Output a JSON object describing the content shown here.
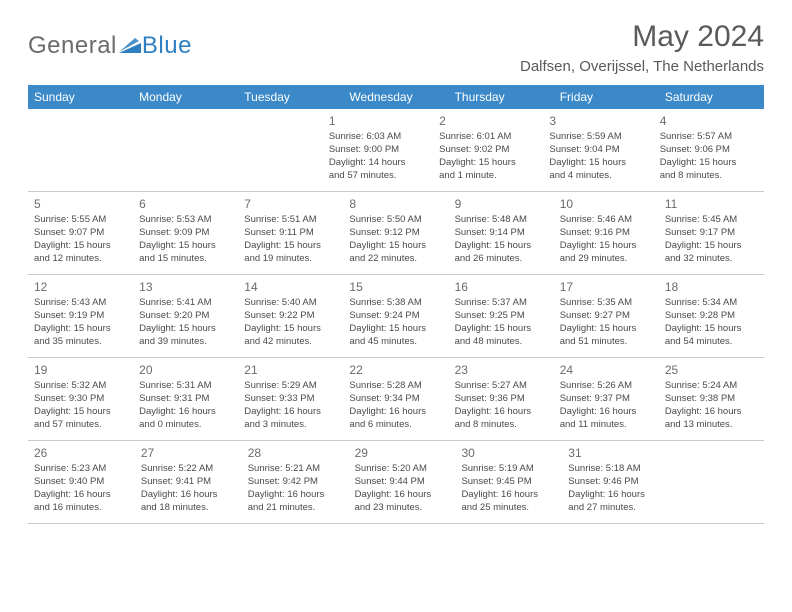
{
  "brand": {
    "word1": "General",
    "word2": "Blue",
    "word1_color": "#6b6b6b",
    "word2_color": "#2f7fc1",
    "mark_color": "#2f7fc1"
  },
  "title": "May 2024",
  "location": "Dalfsen, Overijssel, The Netherlands",
  "title_color": "#5a5a5a",
  "header_bg": "#3b89c9",
  "header_text_color": "#ffffff",
  "border_color": "#c9c9c9",
  "cell_text_color": "#4a4a4a",
  "daynum_color": "#6b6b6b",
  "weekdays": [
    "Sunday",
    "Monday",
    "Tuesday",
    "Wednesday",
    "Thursday",
    "Friday",
    "Saturday"
  ],
  "weeks": [
    [
      null,
      null,
      null,
      {
        "n": "1",
        "sr": "Sunrise: 6:03 AM",
        "ss": "Sunset: 9:00 PM",
        "d1": "Daylight: 14 hours",
        "d2": "and 57 minutes."
      },
      {
        "n": "2",
        "sr": "Sunrise: 6:01 AM",
        "ss": "Sunset: 9:02 PM",
        "d1": "Daylight: 15 hours",
        "d2": "and 1 minute."
      },
      {
        "n": "3",
        "sr": "Sunrise: 5:59 AM",
        "ss": "Sunset: 9:04 PM",
        "d1": "Daylight: 15 hours",
        "d2": "and 4 minutes."
      },
      {
        "n": "4",
        "sr": "Sunrise: 5:57 AM",
        "ss": "Sunset: 9:06 PM",
        "d1": "Daylight: 15 hours",
        "d2": "and 8 minutes."
      }
    ],
    [
      {
        "n": "5",
        "sr": "Sunrise: 5:55 AM",
        "ss": "Sunset: 9:07 PM",
        "d1": "Daylight: 15 hours",
        "d2": "and 12 minutes."
      },
      {
        "n": "6",
        "sr": "Sunrise: 5:53 AM",
        "ss": "Sunset: 9:09 PM",
        "d1": "Daylight: 15 hours",
        "d2": "and 15 minutes."
      },
      {
        "n": "7",
        "sr": "Sunrise: 5:51 AM",
        "ss": "Sunset: 9:11 PM",
        "d1": "Daylight: 15 hours",
        "d2": "and 19 minutes."
      },
      {
        "n": "8",
        "sr": "Sunrise: 5:50 AM",
        "ss": "Sunset: 9:12 PM",
        "d1": "Daylight: 15 hours",
        "d2": "and 22 minutes."
      },
      {
        "n": "9",
        "sr": "Sunrise: 5:48 AM",
        "ss": "Sunset: 9:14 PM",
        "d1": "Daylight: 15 hours",
        "d2": "and 26 minutes."
      },
      {
        "n": "10",
        "sr": "Sunrise: 5:46 AM",
        "ss": "Sunset: 9:16 PM",
        "d1": "Daylight: 15 hours",
        "d2": "and 29 minutes."
      },
      {
        "n": "11",
        "sr": "Sunrise: 5:45 AM",
        "ss": "Sunset: 9:17 PM",
        "d1": "Daylight: 15 hours",
        "d2": "and 32 minutes."
      }
    ],
    [
      {
        "n": "12",
        "sr": "Sunrise: 5:43 AM",
        "ss": "Sunset: 9:19 PM",
        "d1": "Daylight: 15 hours",
        "d2": "and 35 minutes."
      },
      {
        "n": "13",
        "sr": "Sunrise: 5:41 AM",
        "ss": "Sunset: 9:20 PM",
        "d1": "Daylight: 15 hours",
        "d2": "and 39 minutes."
      },
      {
        "n": "14",
        "sr": "Sunrise: 5:40 AM",
        "ss": "Sunset: 9:22 PM",
        "d1": "Daylight: 15 hours",
        "d2": "and 42 minutes."
      },
      {
        "n": "15",
        "sr": "Sunrise: 5:38 AM",
        "ss": "Sunset: 9:24 PM",
        "d1": "Daylight: 15 hours",
        "d2": "and 45 minutes."
      },
      {
        "n": "16",
        "sr": "Sunrise: 5:37 AM",
        "ss": "Sunset: 9:25 PM",
        "d1": "Daylight: 15 hours",
        "d2": "and 48 minutes."
      },
      {
        "n": "17",
        "sr": "Sunrise: 5:35 AM",
        "ss": "Sunset: 9:27 PM",
        "d1": "Daylight: 15 hours",
        "d2": "and 51 minutes."
      },
      {
        "n": "18",
        "sr": "Sunrise: 5:34 AM",
        "ss": "Sunset: 9:28 PM",
        "d1": "Daylight: 15 hours",
        "d2": "and 54 minutes."
      }
    ],
    [
      {
        "n": "19",
        "sr": "Sunrise: 5:32 AM",
        "ss": "Sunset: 9:30 PM",
        "d1": "Daylight: 15 hours",
        "d2": "and 57 minutes."
      },
      {
        "n": "20",
        "sr": "Sunrise: 5:31 AM",
        "ss": "Sunset: 9:31 PM",
        "d1": "Daylight: 16 hours",
        "d2": "and 0 minutes."
      },
      {
        "n": "21",
        "sr": "Sunrise: 5:29 AM",
        "ss": "Sunset: 9:33 PM",
        "d1": "Daylight: 16 hours",
        "d2": "and 3 minutes."
      },
      {
        "n": "22",
        "sr": "Sunrise: 5:28 AM",
        "ss": "Sunset: 9:34 PM",
        "d1": "Daylight: 16 hours",
        "d2": "and 6 minutes."
      },
      {
        "n": "23",
        "sr": "Sunrise: 5:27 AM",
        "ss": "Sunset: 9:36 PM",
        "d1": "Daylight: 16 hours",
        "d2": "and 8 minutes."
      },
      {
        "n": "24",
        "sr": "Sunrise: 5:26 AM",
        "ss": "Sunset: 9:37 PM",
        "d1": "Daylight: 16 hours",
        "d2": "and 11 minutes."
      },
      {
        "n": "25",
        "sr": "Sunrise: 5:24 AM",
        "ss": "Sunset: 9:38 PM",
        "d1": "Daylight: 16 hours",
        "d2": "and 13 minutes."
      }
    ],
    [
      {
        "n": "26",
        "sr": "Sunrise: 5:23 AM",
        "ss": "Sunset: 9:40 PM",
        "d1": "Daylight: 16 hours",
        "d2": "and 16 minutes."
      },
      {
        "n": "27",
        "sr": "Sunrise: 5:22 AM",
        "ss": "Sunset: 9:41 PM",
        "d1": "Daylight: 16 hours",
        "d2": "and 18 minutes."
      },
      {
        "n": "28",
        "sr": "Sunrise: 5:21 AM",
        "ss": "Sunset: 9:42 PM",
        "d1": "Daylight: 16 hours",
        "d2": "and 21 minutes."
      },
      {
        "n": "29",
        "sr": "Sunrise: 5:20 AM",
        "ss": "Sunset: 9:44 PM",
        "d1": "Daylight: 16 hours",
        "d2": "and 23 minutes."
      },
      {
        "n": "30",
        "sr": "Sunrise: 5:19 AM",
        "ss": "Sunset: 9:45 PM",
        "d1": "Daylight: 16 hours",
        "d2": "and 25 minutes."
      },
      {
        "n": "31",
        "sr": "Sunrise: 5:18 AM",
        "ss": "Sunset: 9:46 PM",
        "d1": "Daylight: 16 hours",
        "d2": "and 27 minutes."
      },
      null
    ]
  ]
}
